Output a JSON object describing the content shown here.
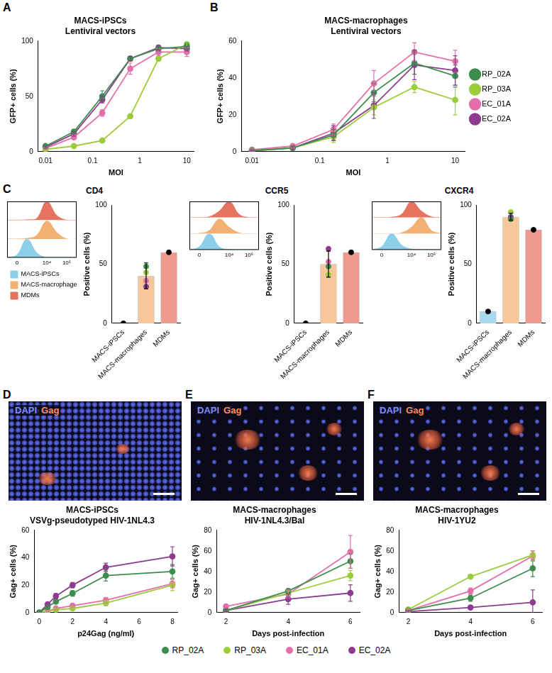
{
  "chart_data": [
    {
      "panel_label": "A",
      "type": "line",
      "title": "MACS-iPSCs",
      "subtitle": "Lentiviral vectors",
      "x_label": "MOI",
      "y_label": "GFP+ cells (%)",
      "log": "x",
      "grid": false,
      "marker": "circle",
      "xlim": [
        0.007,
        14
      ],
      "xticks": [
        0.01,
        0.1,
        1,
        10
      ],
      "ylim": [
        0,
        100
      ],
      "yticks": [
        0,
        50,
        100
      ],
      "x": [
        0.01,
        0.04,
        0.16,
        0.63,
        2.5,
        10
      ],
      "series": [
        {
          "color": "#3d8d4f",
          "values": [
            5,
            18,
            50,
            84,
            93,
            95
          ],
          "errors": [
            1,
            2,
            5,
            2,
            2,
            3
          ]
        },
        {
          "color": "#9ccc3c",
          "values": [
            2,
            5,
            10,
            32,
            84,
            97
          ],
          "errors": [
            0.5,
            1,
            1,
            1,
            2,
            2
          ]
        },
        {
          "color": "#e46ea9",
          "values": [
            3,
            13,
            35,
            75,
            90,
            90
          ],
          "errors": [
            1,
            2,
            3,
            5,
            3,
            4
          ]
        },
        {
          "color": "#8e3b8f",
          "values": [
            4,
            16,
            47,
            84,
            94,
            93
          ],
          "errors": [
            1,
            2,
            3,
            2,
            2,
            2
          ]
        }
      ]
    },
    {
      "panel_label": "B",
      "type": "line",
      "title": "MACS-macrophages",
      "subtitle": "Lentiviral vectors",
      "x_label": "MOI",
      "y_label": "GFP+ cells (%)",
      "log": "x",
      "grid": false,
      "marker": "circle",
      "legend": "right",
      "xlim": [
        0.007,
        14
      ],
      "xticks": [
        0.01,
        0.1,
        1,
        10
      ],
      "ylim": [
        0,
        60
      ],
      "yticks": [
        0,
        20,
        40,
        60
      ],
      "x": [
        0.01,
        0.04,
        0.16,
        0.63,
        2.5,
        10
      ],
      "series": [
        {
          "name": "RP_02A",
          "color": "#3d8d4f",
          "values": [
            0.5,
            2,
            9,
            32,
            48,
            41
          ],
          "errors": [
            0.5,
            1,
            3,
            5,
            6,
            6
          ]
        },
        {
          "name": "RP_03A",
          "color": "#9ccc3c",
          "values": [
            0.5,
            2,
            8,
            24,
            35,
            28
          ],
          "errors": [
            0.3,
            1,
            3,
            4,
            3,
            8
          ]
        },
        {
          "name": "EC_01A",
          "color": "#e46ea9",
          "values": [
            1,
            3,
            12,
            37,
            54,
            49
          ],
          "errors": [
            0.5,
            1,
            3,
            7,
            5,
            6
          ]
        },
        {
          "name": "EC_02A",
          "color": "#8e3b8f",
          "values": [
            0.5,
            2,
            10,
            25,
            47,
            44
          ],
          "errors": [
            0.3,
            1,
            4,
            7,
            8,
            8
          ]
        }
      ]
    },
    {
      "panel_label": "C",
      "type": "bar",
      "title": "CD4",
      "y_label": "Positive cells (%)",
      "grid": false,
      "marker": "circle",
      "categories": [
        "MACS-iPSCs",
        "MACS-macrophages",
        "MDMs"
      ],
      "ylim": [
        0,
        100
      ],
      "yticks": [
        0,
        50,
        100
      ],
      "series": [
        {
          "type": "bar",
          "colors": [
            "#a9d9ee",
            "#f6c79a",
            "#ee9a8f"
          ],
          "values": [
            0,
            40,
            60
          ],
          "errors": [
            null,
            11,
            null
          ]
        },
        {
          "type": "scatter",
          "color": "#000000",
          "values": [
            0,
            null,
            60
          ]
        },
        {
          "type": "scatter",
          "color": "#3d8d4f",
          "values": [
            null,
            48,
            null
          ]
        },
        {
          "type": "scatter",
          "color": "#9ccc3c",
          "values": [
            null,
            43,
            null
          ]
        },
        {
          "type": "scatter",
          "color": "#e46ea9",
          "values": [
            null,
            36,
            null
          ]
        },
        {
          "type": "scatter",
          "color": "#8e3b8f",
          "values": [
            null,
            31,
            null
          ]
        }
      ],
      "inset": {
        "type": "line",
        "tick_labels": "x",
        "legend": "bottom",
        "ylim": [
          0,
          100
        ],
        "categories": [
          null,
          "0",
          null,
          null,
          "10⁴",
          null,
          "10⁶",
          null
        ],
        "series": [
          {
            "name": "MACS-iPSCs",
            "color": "#8ccfe8",
            "values": [
              0,
              15,
              100,
              25,
              0,
              0,
              0,
              0
            ]
          },
          {
            "name": "MACS-macrophages",
            "color": "#f2b072",
            "values": [
              0,
              0,
              3,
              20,
              95,
              35,
              0,
              0
            ]
          },
          {
            "name": "MDMs",
            "color": "#e5735f",
            "values": [
              0,
              0,
              2,
              10,
              100,
              25,
              0,
              0
            ]
          }
        ]
      }
    },
    {
      "type": "bar",
      "title": "CCR5",
      "y_label": "Positive cells (%)",
      "grid": false,
      "marker": "circle",
      "categories": [
        "MACS-iPSCs",
        "MACS-macrophages",
        "MDMs"
      ],
      "ylim": [
        0,
        100
      ],
      "yticks": [
        0,
        50,
        100
      ],
      "series": [
        {
          "type": "bar",
          "colors": [
            "#a9d9ee",
            "#f6c79a",
            "#ee9a8f"
          ],
          "values": [
            0,
            50,
            60
          ],
          "errors": [
            null,
            11,
            null
          ]
        },
        {
          "type": "scatter",
          "color": "#000000",
          "values": [
            0,
            null,
            60
          ]
        },
        {
          "type": "scatter",
          "color": "#3d8d4f",
          "values": [
            null,
            48,
            null
          ]
        },
        {
          "type": "scatter",
          "color": "#9ccc3c",
          "values": [
            null,
            41,
            null
          ]
        },
        {
          "type": "scatter",
          "color": "#e46ea9",
          "values": [
            null,
            52,
            null
          ]
        },
        {
          "type": "scatter",
          "color": "#8e3b8f",
          "values": [
            null,
            63,
            null
          ]
        }
      ],
      "inset": {
        "type": "line",
        "tick_labels": "x",
        "ylim": [
          0,
          100
        ],
        "categories": [
          null,
          "0",
          null,
          null,
          "10⁴",
          null,
          "10⁶",
          null
        ],
        "series": [
          {
            "color": "#8ccfe8",
            "values": [
              0,
              20,
              100,
              20,
              0,
              0,
              0,
              0
            ]
          },
          {
            "color": "#f2b072",
            "values": [
              0,
              2,
              20,
              90,
              40,
              5,
              0,
              0
            ]
          },
          {
            "color": "#e5735f",
            "values": [
              0,
              0,
              5,
              40,
              100,
              20,
              0,
              0
            ]
          }
        ]
      }
    },
    {
      "type": "bar",
      "title": "CXCR4",
      "y_label": "Positive cells (%)",
      "grid": false,
      "marker": "circle",
      "categories": [
        "MACS-iPSCs",
        "MACS-macrophages",
        "MDMs"
      ],
      "ylim": [
        0,
        100
      ],
      "yticks": [
        0,
        50,
        100
      ],
      "series": [
        {
          "type": "bar",
          "colors": [
            "#a9d9ee",
            "#f6c79a",
            "#ee9a8f"
          ],
          "values": [
            10,
            90,
            79
          ],
          "errors": [
            null,
            3,
            null
          ]
        },
        {
          "type": "scatter",
          "color": "#000000",
          "values": [
            10,
            null,
            79
          ]
        },
        {
          "type": "scatter",
          "color": "#3d8d4f",
          "values": [
            null,
            88,
            null
          ]
        },
        {
          "type": "scatter",
          "color": "#9ccc3c",
          "values": [
            null,
            94,
            null
          ]
        },
        {
          "type": "scatter",
          "color": "#e46ea9",
          "values": [
            null,
            88,
            null
          ]
        },
        {
          "type": "scatter",
          "color": "#8e3b8f",
          "values": [
            null,
            90,
            null
          ]
        }
      ],
      "inset": {
        "type": "line",
        "tick_labels": "x",
        "ylim": [
          0,
          100
        ],
        "categories": [
          null,
          "0",
          null,
          null,
          "10⁴",
          null,
          "10⁶",
          null
        ],
        "series": [
          {
            "color": "#8ccfe8",
            "values": [
              0,
              20,
              100,
              30,
              5,
              0,
              0,
              0
            ]
          },
          {
            "color": "#f2b072",
            "values": [
              0,
              0,
              0,
              5,
              40,
              100,
              20,
              0
            ]
          },
          {
            "color": "#e5735f",
            "values": [
              0,
              0,
              2,
              20,
              100,
              40,
              5,
              0
            ]
          }
        ]
      }
    },
    {
      "panel_label": "D",
      "type": "line",
      "title": "MACS-iPSCs",
      "subtitle": "VSVg-pseudotyped HIV-1NL4.3",
      "image_channels": [
        {
          "text": "DAPI",
          "color": "#7f8cff"
        },
        {
          "text": "Gag",
          "color": "#ff8a5c"
        }
      ],
      "x_label": "p24Gag (ng/ml)",
      "y_label": "Gag+ cells (%)",
      "grid": false,
      "marker": "circle",
      "xlim": [
        -0.3,
        8.3
      ],
      "xticks": [
        0,
        2,
        4,
        6,
        8
      ],
      "ylim": [
        0,
        60
      ],
      "yticks": [
        0,
        20,
        40,
        60
      ],
      "x": [
        0,
        0.5,
        1,
        2,
        4,
        8
      ],
      "series": [
        {
          "color": "#3d8d4f",
          "values": [
            0,
            4,
            8,
            14,
            27,
            30
          ],
          "errors": [
            0,
            1,
            1,
            2,
            4,
            5
          ]
        },
        {
          "color": "#9ccc3c",
          "values": [
            0,
            1,
            2,
            3,
            7,
            20
          ],
          "errors": [
            0,
            0.5,
            1,
            1,
            2,
            4
          ]
        },
        {
          "color": "#e46ea9",
          "values": [
            0,
            1,
            3,
            5,
            9,
            21
          ],
          "errors": [
            0,
            0.5,
            1,
            1,
            2,
            3
          ]
        },
        {
          "color": "#8e3b8f",
          "values": [
            0,
            6,
            12,
            20,
            33,
            41
          ],
          "errors": [
            0,
            1,
            2,
            2,
            3,
            7
          ]
        }
      ]
    },
    {
      "panel_label": "E",
      "type": "line",
      "title": "MACS-macrophages",
      "subtitle": "HIV-1NL4.3/Bal",
      "image_channels": [
        {
          "text": "DAPI",
          "color": "#7f8cff"
        },
        {
          "text": "Gag",
          "color": "#ff8a5c"
        }
      ],
      "x_label": "Days post-infection",
      "y_label": "Gag+ cells (%)",
      "grid": false,
      "marker": "circle",
      "legend": "bottom",
      "xlim": [
        1.7,
        6.3
      ],
      "xticks": [
        2,
        4,
        6
      ],
      "ylim": [
        0,
        80
      ],
      "yticks": [
        0,
        20,
        40,
        60,
        80
      ],
      "x": [
        2,
        4,
        6
      ],
      "series": [
        {
          "name": "RP_02A",
          "color": "#3d8d4f",
          "values": [
            2,
            21,
            50
          ],
          "errors": [
            1,
            2,
            7
          ]
        },
        {
          "name": "RP_03A",
          "color": "#9ccc3c",
          "values": [
            2,
            19,
            36
          ],
          "errors": [
            1,
            2,
            5
          ]
        },
        {
          "name": "EC_01A",
          "color": "#e46ea9",
          "values": [
            6,
            18,
            59
          ],
          "errors": [
            1,
            4,
            16
          ]
        },
        {
          "name": "EC_02A",
          "color": "#8e3b8f",
          "values": [
            2,
            13,
            19
          ],
          "errors": [
            1,
            5,
            8
          ]
        }
      ]
    },
    {
      "panel_label": "F",
      "type": "line",
      "title": "MACS-macrophages",
      "subtitle": "HIV-1YU2",
      "image_channels": [
        {
          "text": "DAPI",
          "color": "#7f8cff"
        },
        {
          "text": "Gag",
          "color": "#ff8a5c"
        }
      ],
      "x_label": "Days post-infection",
      "y_label": "Gag+ cells (%)",
      "grid": false,
      "marker": "circle",
      "xlim": [
        1.7,
        6.3
      ],
      "xticks": [
        2,
        4,
        6
      ],
      "ylim": [
        0,
        80
      ],
      "yticks": [
        0,
        20,
        40,
        60,
        80
      ],
      "x": [
        2,
        4,
        6
      ],
      "series": [
        {
          "color": "#3d8d4f",
          "values": [
            2,
            14,
            43
          ],
          "errors": [
            1,
            3,
            8
          ]
        },
        {
          "color": "#9ccc3c",
          "values": [
            3,
            35,
            56
          ],
          "errors": [
            1,
            1,
            4
          ]
        },
        {
          "color": "#e46ea9",
          "values": [
            2,
            21,
            55
          ],
          "errors": [
            1,
            3,
            5
          ]
        },
        {
          "color": "#8e3b8f",
          "values": [
            1,
            5,
            10
          ],
          "errors": [
            1,
            2,
            12
          ]
        }
      ]
    }
  ]
}
